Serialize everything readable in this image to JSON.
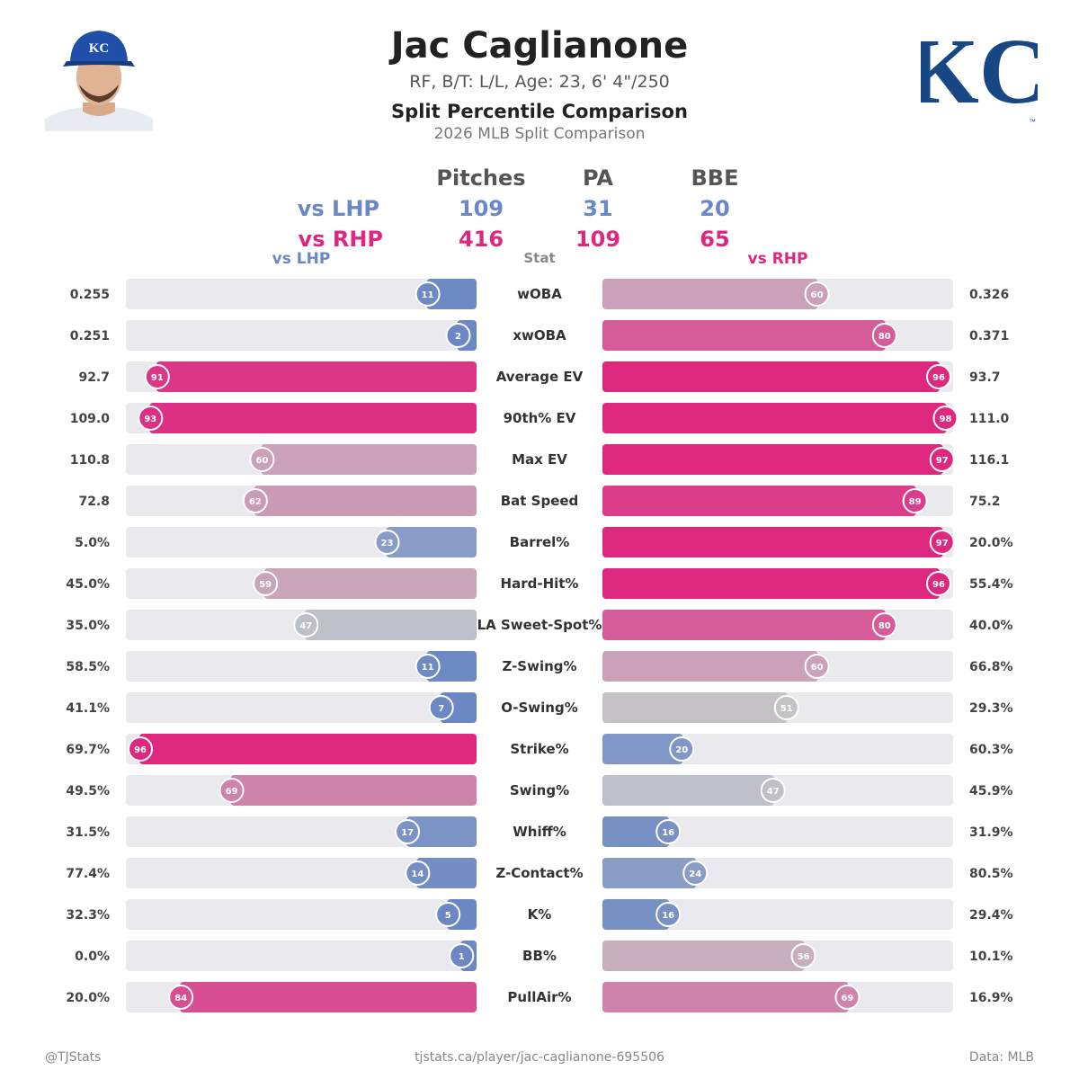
{
  "header": {
    "player_name": "Jac Caglianone",
    "player_info": "RF, B/T: L/L, Age: 23, 6' 4\"/250",
    "chart_title": "Split Percentile Comparison",
    "chart_subtitle": "2026 MLB Split Comparison",
    "logo_text": "KC"
  },
  "summary": {
    "headers": [
      "Pitches",
      "PA",
      "BBE"
    ],
    "rows": [
      {
        "label": "vs LHP",
        "values": [
          "109",
          "31",
          "20"
        ]
      },
      {
        "label": "vs RHP",
        "values": [
          "416",
          "109",
          "65"
        ]
      }
    ]
  },
  "columns": {
    "left": "vs LHP",
    "center": "Stat",
    "right": "vs RHP"
  },
  "colors": {
    "lhp": "#6b88c4",
    "rhp": "#de2880",
    "track": "#e9e9ee",
    "high": "#de2880",
    "mid": "#c4c4c8",
    "low": "#6b88c4"
  },
  "chart_data": {
    "type": "bar",
    "orientation": "horizontal-mirrored",
    "xlim": [
      0,
      100
    ],
    "series": [
      {
        "name": "vs LHP",
        "values": [
          11,
          2,
          91,
          93,
          60,
          62,
          23,
          59,
          47,
          11,
          7,
          96,
          69,
          17,
          14,
          5,
          1,
          84
        ],
        "labels": [
          "0.255",
          "0.251",
          "92.7",
          "109.0",
          "110.8",
          "72.8",
          "5.0%",
          "45.0%",
          "35.0%",
          "58.5%",
          "41.1%",
          "69.7%",
          "49.5%",
          "31.5%",
          "77.4%",
          "32.3%",
          "0.0%",
          "20.0%"
        ]
      },
      {
        "name": "vs RHP",
        "values": [
          60,
          80,
          96,
          98,
          97,
          89,
          97,
          96,
          80,
          60,
          51,
          20,
          47,
          16,
          24,
          16,
          56,
          69
        ],
        "labels": [
          "0.326",
          "0.371",
          "93.7",
          "111.0",
          "116.1",
          "75.2",
          "20.0%",
          "55.4%",
          "40.0%",
          "66.8%",
          "29.3%",
          "60.3%",
          "45.9%",
          "31.9%",
          "80.5%",
          "29.4%",
          "10.1%",
          "16.9%"
        ]
      }
    ],
    "categories": [
      "wOBA",
      "xwOBA",
      "Average EV",
      "90th% EV",
      "Max EV",
      "Bat Speed",
      "Barrel%",
      "Hard-Hit%",
      "LA Sweet-Spot%",
      "Z-Swing%",
      "O-Swing%",
      "Strike%",
      "Swing%",
      "Whiff%",
      "Z-Contact%",
      "K%",
      "BB%",
      "PullAir%"
    ]
  },
  "footer": {
    "left": "@TJStats",
    "center": "tjstats.ca/player/jac-caglianone-695506",
    "right": "Data: MLB"
  }
}
